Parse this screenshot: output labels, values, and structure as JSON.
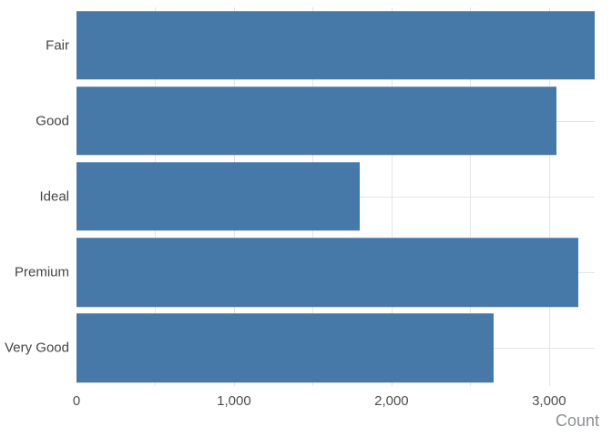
{
  "chart_data": {
    "type": "bar",
    "orientation": "horizontal",
    "title": "",
    "xlabel": "Count",
    "ylabel": "",
    "categories": [
      "Fair",
      "Good",
      "Ideal",
      "Premium",
      "Very Good"
    ],
    "values": [
      3290,
      3050,
      1800,
      3185,
      2650
    ],
    "xlim": [
      0,
      3290
    ],
    "x_tick_values": [
      0,
      1000,
      2000,
      3000
    ],
    "x_tick_labels": [
      "0",
      "1,000",
      "2,000",
      "3,000"
    ],
    "gridline_step": 500,
    "grid": true,
    "legend": "none",
    "colors": {
      "bar": "#4678a8",
      "grid": "#e3e6e8",
      "tick_label": "#4d4f53",
      "category_label": "#444444",
      "axis_title": "#8d9093",
      "background": "#ffffff"
    }
  }
}
